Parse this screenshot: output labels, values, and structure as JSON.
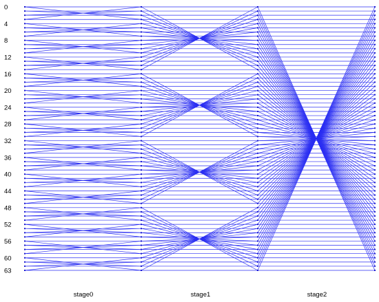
{
  "diagram": {
    "type": "butterfly-network",
    "rows": 64,
    "row_labels": [
      "0",
      "4",
      "8",
      "12",
      "16",
      "20",
      "24",
      "28",
      "32",
      "36",
      "40",
      "44",
      "48",
      "52",
      "56",
      "60",
      "63"
    ],
    "row_label_indices": [
      0,
      4,
      8,
      12,
      16,
      20,
      24,
      28,
      32,
      36,
      40,
      44,
      48,
      52,
      56,
      60,
      63
    ],
    "stages": [
      {
        "name": "stage0",
        "connection": "within blocks of 4: i <-> i XOR 3"
      },
      {
        "name": "stage1",
        "connection": "within blocks of 16: i <-> i XOR 15"
      },
      {
        "name": "stage2",
        "connection": "full 64: i <-> 63 - i"
      }
    ],
    "colors": {
      "edge": "#2a2ef2",
      "node": "#1a1ad0",
      "text": "#000000",
      "background": "#ffffff"
    }
  }
}
